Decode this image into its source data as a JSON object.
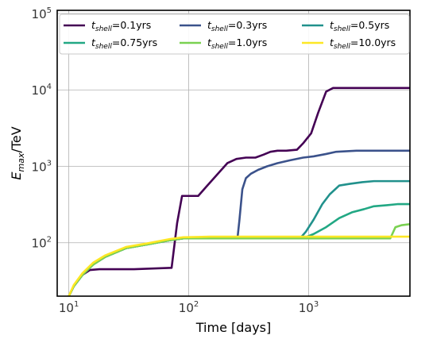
{
  "chart_data": {
    "type": "line",
    "xlabel": "Time [days]",
    "ylabel_main": "E",
    "ylabel_sub": "max",
    "ylabel_rest": "/TeV",
    "xscale": "log",
    "yscale": "log",
    "xlim": [
      8,
      7000
    ],
    "ylim": [
      20,
      110000
    ],
    "grid": true,
    "legend_position": "top",
    "legend_columns": 3,
    "x_ticks": [
      {
        "value": 10,
        "base": "10",
        "exp": "1"
      },
      {
        "value": 100,
        "base": "10",
        "exp": "2"
      },
      {
        "value": 1000,
        "base": "10",
        "exp": "3"
      }
    ],
    "y_ticks": [
      {
        "value": 100,
        "base": "10",
        "exp": "2"
      },
      {
        "value": 1000,
        "base": "10",
        "exp": "3"
      },
      {
        "value": 10000,
        "base": "10",
        "exp": "4"
      },
      {
        "value": 100000,
        "base": "10",
        "exp": "5"
      }
    ],
    "series": [
      {
        "label_var": "t",
        "label_sub": "shell",
        "label_value": "=0.1yrs",
        "color": "#440154",
        "points": [
          [
            10,
            20
          ],
          [
            11,
            27
          ],
          [
            13,
            38
          ],
          [
            15,
            44
          ],
          [
            18,
            45
          ],
          [
            25,
            45
          ],
          [
            35,
            45
          ],
          [
            50,
            46
          ],
          [
            72,
            47
          ],
          [
            80,
            180
          ],
          [
            88,
            410
          ],
          [
            100,
            410
          ],
          [
            120,
            410
          ],
          [
            140,
            540
          ],
          [
            170,
            760
          ],
          [
            210,
            1100
          ],
          [
            250,
            1250
          ],
          [
            300,
            1300
          ],
          [
            360,
            1300
          ],
          [
            420,
            1420
          ],
          [
            480,
            1550
          ],
          [
            550,
            1600
          ],
          [
            650,
            1600
          ],
          [
            800,
            1650
          ],
          [
            900,
            2000
          ],
          [
            1050,
            2700
          ],
          [
            1200,
            5000
          ],
          [
            1400,
            9500
          ],
          [
            1600,
            10600
          ],
          [
            2000,
            10600
          ],
          [
            4000,
            10600
          ],
          [
            7000,
            10600
          ]
        ]
      },
      {
        "label_var": "t",
        "label_sub": "shell",
        "label_value": "=0.3yrs",
        "color": "#3b528b",
        "points": [
          [
            10,
            20
          ],
          [
            11,
            27
          ],
          [
            13,
            38
          ],
          [
            16,
            52
          ],
          [
            20,
            65
          ],
          [
            30,
            85
          ],
          [
            45,
            95
          ],
          [
            70,
            108
          ],
          [
            90,
            114
          ],
          [
            120,
            114
          ],
          [
            180,
            114
          ],
          [
            255,
            114
          ],
          [
            265,
            200
          ],
          [
            280,
            500
          ],
          [
            300,
            700
          ],
          [
            330,
            800
          ],
          [
            380,
            900
          ],
          [
            450,
            1000
          ],
          [
            550,
            1100
          ],
          [
            700,
            1200
          ],
          [
            900,
            1300
          ],
          [
            1100,
            1350
          ],
          [
            1400,
            1450
          ],
          [
            1700,
            1550
          ],
          [
            2500,
            1600
          ],
          [
            7000,
            1600
          ]
        ]
      },
      {
        "label_var": "t",
        "label_sub": "shell",
        "label_value": "=0.5yrs",
        "color": "#21918c",
        "points": [
          [
            10,
            20
          ],
          [
            11,
            27
          ],
          [
            13,
            38
          ],
          [
            16,
            52
          ],
          [
            20,
            65
          ],
          [
            30,
            85
          ],
          [
            45,
            95
          ],
          [
            70,
            108
          ],
          [
            90,
            114
          ],
          [
            150,
            114
          ],
          [
            300,
            114
          ],
          [
            600,
            114
          ],
          [
            850,
            114
          ],
          [
            950,
            140
          ],
          [
            1100,
            200
          ],
          [
            1300,
            320
          ],
          [
            1500,
            430
          ],
          [
            1800,
            560
          ],
          [
            2200,
            590
          ],
          [
            2800,
            620
          ],
          [
            3500,
            640
          ],
          [
            7000,
            640
          ]
        ]
      },
      {
        "label_var": "t",
        "label_sub": "shell",
        "label_value": "=0.75yrs",
        "color": "#22a884",
        "points": [
          [
            10,
            20
          ],
          [
            11,
            27
          ],
          [
            13,
            38
          ],
          [
            16,
            52
          ],
          [
            20,
            65
          ],
          [
            30,
            85
          ],
          [
            45,
            95
          ],
          [
            70,
            108
          ],
          [
            90,
            114
          ],
          [
            150,
            114
          ],
          [
            300,
            114
          ],
          [
            600,
            114
          ],
          [
            900,
            114
          ],
          [
            1100,
            130
          ],
          [
            1400,
            160
          ],
          [
            1800,
            210
          ],
          [
            2300,
            250
          ],
          [
            2900,
            275
          ],
          [
            3500,
            300
          ],
          [
            4500,
            310
          ],
          [
            5500,
            320
          ],
          [
            7000,
            320
          ]
        ]
      },
      {
        "label_var": "t",
        "label_sub": "shell",
        "label_value": "=1.0yrs",
        "color": "#7ad151",
        "points": [
          [
            10,
            20
          ],
          [
            11,
            27
          ],
          [
            13,
            38
          ],
          [
            16,
            52
          ],
          [
            20,
            65
          ],
          [
            30,
            85
          ],
          [
            45,
            95
          ],
          [
            70,
            108
          ],
          [
            90,
            114
          ],
          [
            150,
            114
          ],
          [
            300,
            114
          ],
          [
            600,
            114
          ],
          [
            1200,
            114
          ],
          [
            2500,
            114
          ],
          [
            4800,
            114
          ],
          [
            5300,
            160
          ],
          [
            6000,
            170
          ],
          [
            7000,
            175
          ]
        ]
      },
      {
        "label_var": "t",
        "label_sub": "shell",
        "label_value": "=10.0yrs",
        "color": "#fde725",
        "points": [
          [
            10,
            20
          ],
          [
            11,
            28
          ],
          [
            13,
            40
          ],
          [
            16,
            55
          ],
          [
            20,
            68
          ],
          [
            30,
            88
          ],
          [
            45,
            98
          ],
          [
            70,
            112
          ],
          [
            90,
            118
          ],
          [
            150,
            120
          ],
          [
            300,
            120
          ],
          [
            600,
            120
          ],
          [
            1200,
            120
          ],
          [
            2500,
            120
          ],
          [
            5000,
            120
          ],
          [
            7000,
            120
          ]
        ]
      }
    ]
  }
}
